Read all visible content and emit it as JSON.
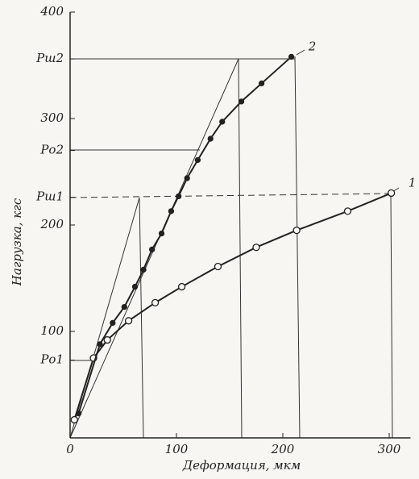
{
  "chart_data": {
    "type": "line",
    "xlabel": "Деформация, мкм",
    "ylabel": "Нагрузка, кгс",
    "xlim": [
      0,
      320
    ],
    "ylim": [
      0,
      400
    ],
    "xticks": [
      0,
      100,
      200,
      300
    ],
    "yticks": [
      100,
      200,
      300,
      400,
      {
        "value": 356,
        "label": "Pш2"
      },
      {
        "value": 270,
        "label": "Pо2"
      },
      {
        "value": 226,
        "label": "Pш1"
      },
      {
        "value": 73,
        "label": "Pо1"
      }
    ],
    "series": [
      {
        "name": "1",
        "color": "#222",
        "marker": "open",
        "x": [
          4,
          22,
          35,
          55,
          80,
          105,
          139,
          175,
          213,
          261,
          302
        ],
        "values": [
          17,
          75,
          92,
          110,
          127,
          142,
          161,
          179,
          195,
          213,
          230
        ]
      },
      {
        "name": "2",
        "color": "#222",
        "marker": "filled",
        "x": [
          8,
          28,
          40,
          51,
          61,
          69,
          77,
          86,
          95,
          102,
          110,
          120,
          132,
          143,
          161,
          180,
          208
        ],
        "values": [
          23,
          88,
          108,
          123,
          142,
          158,
          177,
          192,
          213,
          227,
          244,
          261,
          281,
          297,
          316,
          333,
          358
        ]
      }
    ]
  }
}
